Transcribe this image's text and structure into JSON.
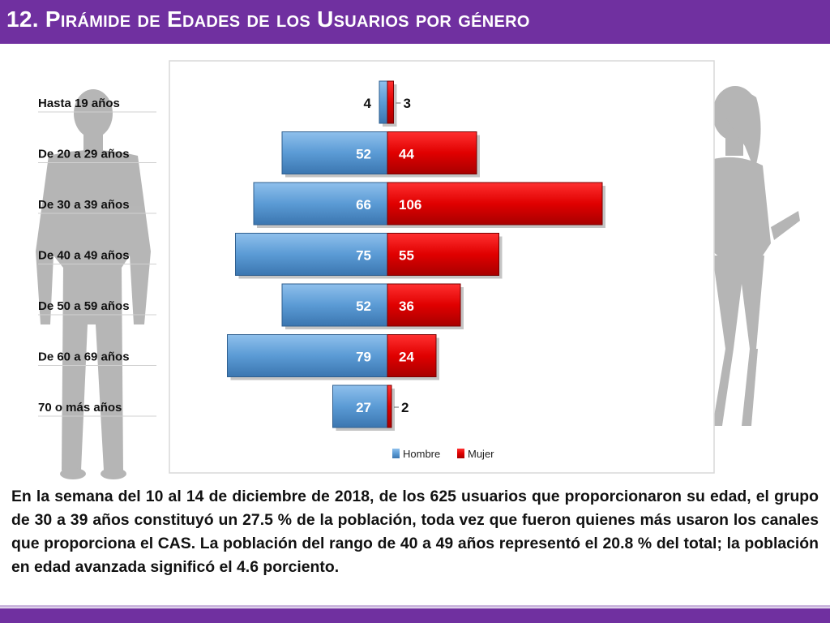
{
  "header": {
    "title": "12. Pirámide de Edades de los Usuarios por género"
  },
  "colors": {
    "banner": "#7030a0",
    "hombre": "#5b9bd5",
    "mujer": "#e00000",
    "silhouette": "#a6a6a6"
  },
  "chart_data": {
    "type": "bar",
    "orientation": "horizontal-population-pyramid",
    "categories": [
      "Hasta 19 años",
      "De 20 a 29 años",
      "De 30 a 39 años",
      "De 40 a 49 años",
      "De 50 a 59 años",
      "De 60 a 69 años",
      "70 o más años"
    ],
    "series": [
      {
        "name": "Hombre",
        "values": [
          4,
          52,
          66,
          75,
          52,
          79,
          27
        ]
      },
      {
        "name": "Mujer",
        "values": [
          3,
          44,
          106,
          55,
          36,
          24,
          2
        ]
      }
    ],
    "legend_position": "bottom",
    "grid": false
  },
  "paragraph": "En la semana del 10 al 14 de diciembre de 2018, de los 625 usuarios que proporcionaron su edad, el grupo de 30 a 39 años constituyó un 27.5 % de la población, toda vez que fueron quienes más usaron los canales que proporciona el CAS. La población del rango de 40 a 49 años representó el 20.8 % del total; la población en edad avanzada significó el 4.6 porciento."
}
